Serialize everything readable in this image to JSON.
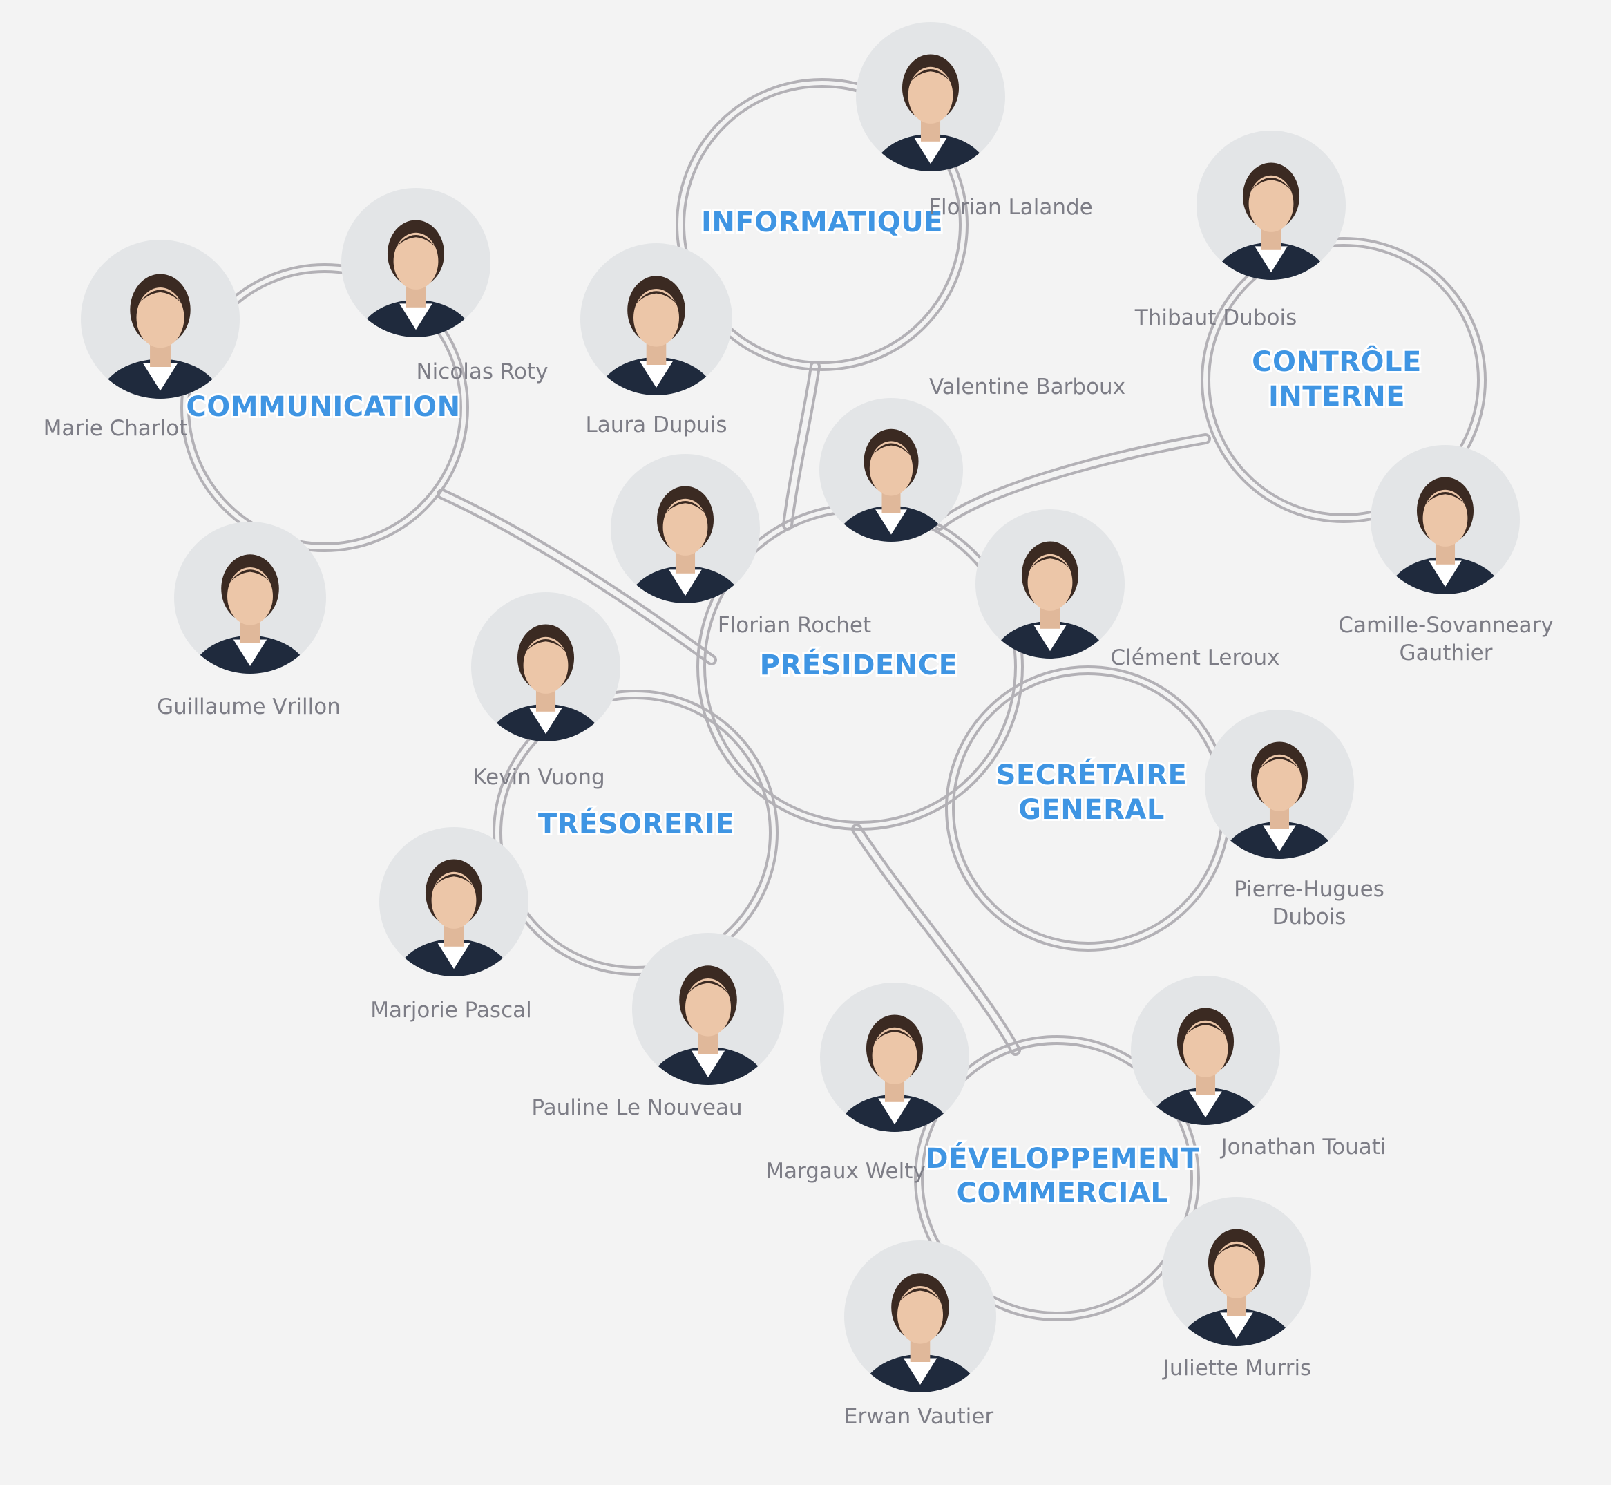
{
  "colors": {
    "background": "#f3f3f3",
    "department_label": "#3f95e3",
    "ring": "#b3b1b6",
    "name_text": "#7d7d86",
    "photo_background": "#e3e5e7",
    "clothing": "#1f2a3d"
  },
  "departments": {
    "informatique": [
      "INFORMATIQUE"
    ],
    "communication": [
      "COMMUNICATION"
    ],
    "controle": [
      "CONTRÔLE",
      "INTERNE"
    ],
    "presidence": [
      "PRÉSIDENCE"
    ],
    "tresorerie": [
      "TRÉSORERIE"
    ],
    "secretaire": [
      "SECRÉTAIRE",
      "GENERAL"
    ],
    "developpement": [
      "DÉVELOPPEMENT",
      "COMMERCIAL"
    ]
  },
  "members": {
    "florian_lalande": [
      "Florian Lalande"
    ],
    "laura_dupuis": [
      "Laura Dupuis"
    ],
    "nicolas_roty": [
      "Nicolas Roty"
    ],
    "marie_charlot": [
      "Marie Charlot"
    ],
    "guillaume_vrillon": [
      "Guillaume Vrillon"
    ],
    "thibaut_dubois": [
      "Thibaut Dubois"
    ],
    "camille_gauthier": [
      "Camille-Sovanneary",
      "Gauthier"
    ],
    "valentine_barboux": [
      "Valentine Barboux"
    ],
    "florian_rochet": [
      "Florian Rochet"
    ],
    "clement_leroux": [
      "Clément Leroux"
    ],
    "kevin_vuong": [
      "Kevin Vuong"
    ],
    "marjorie_pascal": [
      "Marjorie Pascal"
    ],
    "pauline_le_nouveau": [
      "Pauline Le Nouveau"
    ],
    "pierre_hugues_dubois": [
      "Pierre-Hugues",
      "Dubois"
    ],
    "margaux_welty": [
      "Margaux Welty"
    ],
    "jonathan_touati": [
      "Jonathan Touati"
    ],
    "erwan_vautier": [
      "Erwan Vautier"
    ],
    "juliette_murris": [
      "Juliette Murris"
    ]
  }
}
